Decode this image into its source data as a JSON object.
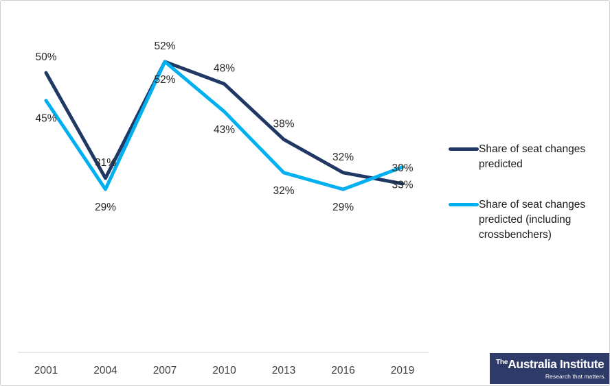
{
  "chart_data": {
    "type": "line",
    "title": "",
    "xlabel": "",
    "ylabel": "",
    "categories": [
      "2001",
      "2004",
      "2007",
      "2010",
      "2013",
      "2016",
      "2019"
    ],
    "series": [
      {
        "name": "Share of seat changes predicted",
        "color": "#1F3864",
        "values": [
          50,
          31,
          52,
          48,
          38,
          32,
          30
        ],
        "label_position": "above"
      },
      {
        "name": "Share of seat changes predicted (including crossbenchers)",
        "color": "#00B0F0",
        "values": [
          45,
          29,
          52,
          43,
          32,
          29,
          33
        ],
        "label_position": "below"
      }
    ],
    "value_suffix": "%",
    "data_labels_shown": true,
    "ylim": [
      25,
      56
    ],
    "grid": false,
    "y_axis_shown": false,
    "legend_position": "right",
    "axis_color": "#D9D9D9",
    "data_label_color": "#262626",
    "tick_label_color": "#404040",
    "line_width": 5
  },
  "branding": {
    "prefix": "The",
    "name": "Australia Institute",
    "tagline": "Research that matters.",
    "background": "#2E3A67",
    "text_color": "#FFFFFF"
  }
}
